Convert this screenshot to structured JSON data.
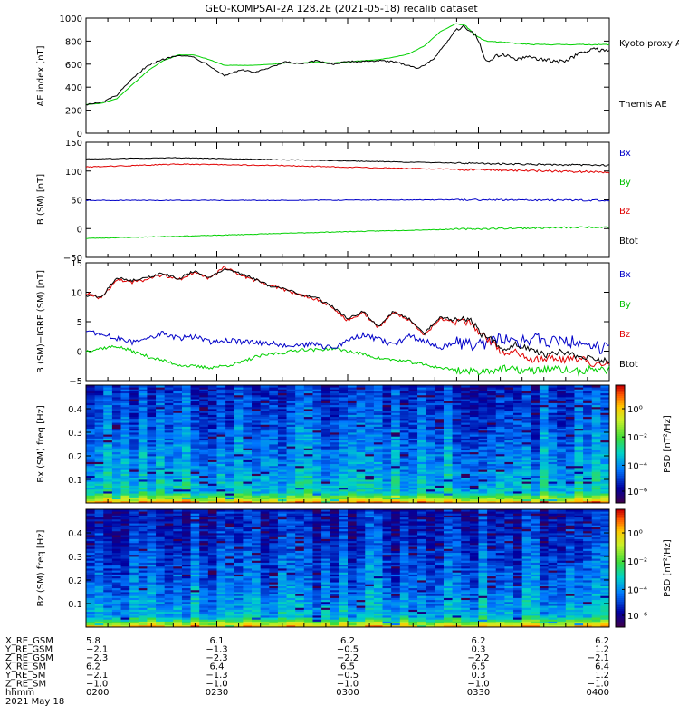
{
  "title": "GEO-KOMPSAT-2A 128.2E (2021-05-18) recalib dataset",
  "colors": {
    "black": "#000000",
    "red": "#e00000",
    "blue": "#0000c8",
    "green": "#00d000"
  },
  "chart_data": [
    {
      "type": "line",
      "panel": "ae",
      "ylabel": "AE index [nT]",
      "ylim": [
        0,
        1000
      ],
      "yticks": [
        "0",
        "200",
        "400",
        "600",
        "800",
        "1000"
      ],
      "xlim": [
        "02:00",
        "04:00"
      ],
      "legend": [
        "Kyoto proxy AE",
        "Themis AE"
      ],
      "series": [
        {
          "name": "Themis AE",
          "color": "#000000",
          "points": [
            [
              0,
              250
            ],
            [
              5,
              265
            ],
            [
              10,
              330
            ],
            [
              15,
              470
            ],
            [
              20,
              590
            ],
            [
              25,
              640
            ],
            [
              30,
              680
            ],
            [
              35,
              660
            ],
            [
              40,
              590
            ],
            [
              45,
              500
            ],
            [
              50,
              550
            ],
            [
              55,
              530
            ],
            [
              60,
              570
            ],
            [
              65,
              620
            ],
            [
              70,
              600
            ],
            [
              75,
              630
            ],
            [
              80,
              600
            ],
            [
              85,
              620
            ],
            [
              90,
              625
            ],
            [
              95,
              630
            ],
            [
              100,
              620
            ],
            [
              105,
              590
            ],
            [
              108,
              560
            ],
            [
              113,
              650
            ],
            [
              117,
              780
            ],
            [
              120,
              900
            ],
            [
              123,
              930
            ],
            [
              127,
              840
            ],
            [
              130,
              620
            ],
            [
              135,
              690
            ],
            [
              140,
              640
            ],
            [
              145,
              660
            ],
            [
              150,
              630
            ],
            [
              155,
              620
            ],
            [
              160,
              690
            ],
            [
              165,
              730
            ],
            [
              170,
              720
            ]
          ]
        },
        {
          "name": "Kyoto proxy AE",
          "color": "#00d000",
          "points": [
            [
              0,
              250
            ],
            [
              5,
              260
            ],
            [
              10,
              300
            ],
            [
              15,
              420
            ],
            [
              20,
              540
            ],
            [
              25,
              630
            ],
            [
              30,
              680
            ],
            [
              35,
              680
            ],
            [
              40,
              640
            ],
            [
              45,
              590
            ],
            [
              50,
              590
            ],
            [
              55,
              590
            ],
            [
              60,
              600
            ],
            [
              65,
              610
            ],
            [
              70,
              610
            ],
            [
              75,
              620
            ],
            [
              80,
              610
            ],
            [
              85,
              620
            ],
            [
              90,
              630
            ],
            [
              95,
              640
            ],
            [
              100,
              660
            ],
            [
              105,
              690
            ],
            [
              110,
              760
            ],
            [
              115,
              880
            ],
            [
              120,
              950
            ],
            [
              123,
              940
            ],
            [
              127,
              840
            ],
            [
              130,
              800
            ],
            [
              135,
              790
            ],
            [
              145,
              770
            ],
            [
              155,
              770
            ],
            [
              170,
              770
            ]
          ]
        }
      ]
    },
    {
      "type": "line",
      "panel": "b_sm",
      "ylabel": "B (SM) [nT]",
      "ylim": [
        -50,
        150
      ],
      "yticks": [
        "−50",
        "0",
        "50",
        "100",
        "150"
      ],
      "legend": [
        "Bx",
        "By",
        "Bz",
        "Btot"
      ],
      "series": [
        {
          "name": "Btot",
          "color": "#000000",
          "points": [
            [
              0,
              121
            ],
            [
              30,
              123
            ],
            [
              60,
              120
            ],
            [
              90,
              117
            ],
            [
              120,
              114
            ],
            [
              150,
              111
            ],
            [
              170,
              110
            ]
          ]
        },
        {
          "name": "Bz",
          "color": "#e00000",
          "points": [
            [
              0,
              107
            ],
            [
              30,
              112
            ],
            [
              60,
              110
            ],
            [
              90,
              106
            ],
            [
              120,
              103
            ],
            [
              150,
              100
            ],
            [
              170,
              98
            ]
          ]
        },
        {
          "name": "Bx",
          "color": "#0000c8",
          "points": [
            [
              0,
              49
            ],
            [
              60,
              49
            ],
            [
              120,
              50
            ],
            [
              170,
              49
            ]
          ]
        },
        {
          "name": "By",
          "color": "#00d000",
          "points": [
            [
              0,
              -17
            ],
            [
              40,
              -12
            ],
            [
              80,
              -6
            ],
            [
              120,
              -1
            ],
            [
              170,
              3
            ]
          ]
        }
      ]
    },
    {
      "type": "line",
      "panel": "b_sm_minus_igrf",
      "ylabel": "B (SM)−IGRF (SM) [nT]",
      "ylim": [
        -5,
        15
      ],
      "yticks": [
        "−5",
        "0",
        "5",
        "10",
        "15"
      ],
      "legend": [
        "Bx",
        "By",
        "Bz",
        "Btot"
      ],
      "series": [
        {
          "name": "Btot",
          "color": "#000000",
          "points": [
            [
              0,
              9.5
            ],
            [
              5,
              9.2
            ],
            [
              10,
              12.5
            ],
            [
              15,
              12.0
            ],
            [
              20,
              12.5
            ],
            [
              25,
              13.2
            ],
            [
              30,
              12.3
            ],
            [
              35,
              13.6
            ],
            [
              40,
              12.4
            ],
            [
              45,
              14.0
            ],
            [
              50,
              13.3
            ],
            [
              55,
              12.2
            ],
            [
              60,
              11.0
            ],
            [
              65,
              10.5
            ],
            [
              70,
              9.6
            ],
            [
              75,
              9.0
            ],
            [
              80,
              7.6
            ],
            [
              85,
              5.5
            ],
            [
              90,
              6.7
            ],
            [
              95,
              4.1
            ],
            [
              100,
              6.8
            ],
            [
              105,
              5.5
            ],
            [
              110,
              3.0
            ],
            [
              115,
              5.8
            ],
            [
              120,
              5.2
            ],
            [
              125,
              5.4
            ],
            [
              128,
              3.0
            ],
            [
              132,
              2.0
            ],
            [
              136,
              0.2
            ],
            [
              140,
              1.2
            ],
            [
              145,
              0.0
            ],
            [
              150,
              -0.8
            ],
            [
              155,
              0.0
            ],
            [
              160,
              -1.0
            ],
            [
              165,
              -1.3
            ],
            [
              170,
              -1.8
            ]
          ]
        },
        {
          "name": "Bz",
          "color": "#e00000",
          "points": [
            [
              0,
              9.8
            ],
            [
              5,
              9.0
            ],
            [
              10,
              12.2
            ],
            [
              15,
              11.7
            ],
            [
              20,
              12.2
            ],
            [
              25,
              13.0
            ],
            [
              30,
              12.1
            ],
            [
              35,
              13.3
            ],
            [
              40,
              12.3
            ],
            [
              45,
              14.3
            ],
            [
              50,
              13.0
            ],
            [
              55,
              12.0
            ],
            [
              60,
              11.2
            ],
            [
              65,
              10.3
            ],
            [
              70,
              9.4
            ],
            [
              75,
              8.8
            ],
            [
              80,
              7.5
            ],
            [
              85,
              5.2
            ],
            [
              90,
              6.6
            ],
            [
              95,
              4.0
            ],
            [
              100,
              6.6
            ],
            [
              105,
              5.2
            ],
            [
              110,
              2.8
            ],
            [
              115,
              5.5
            ],
            [
              120,
              4.9
            ],
            [
              125,
              5.0
            ],
            [
              128,
              2.8
            ],
            [
              132,
              1.6
            ],
            [
              136,
              -0.6
            ],
            [
              140,
              0.0
            ],
            [
              145,
              -1.5
            ],
            [
              150,
              -1.2
            ],
            [
              155,
              -1.5
            ],
            [
              160,
              -1.3
            ],
            [
              165,
              -2.0
            ],
            [
              170,
              -2.4
            ]
          ]
        },
        {
          "name": "Bx",
          "color": "#0000c8",
          "points": [
            [
              0,
              3.5
            ],
            [
              5,
              2.8
            ],
            [
              10,
              2.1
            ],
            [
              15,
              1.5
            ],
            [
              20,
              2.4
            ],
            [
              25,
              3.0
            ],
            [
              30,
              2.1
            ],
            [
              35,
              2.5
            ],
            [
              40,
              1.5
            ],
            [
              45,
              1.9
            ],
            [
              50,
              1.6
            ],
            [
              55,
              1.4
            ],
            [
              60,
              1.3
            ],
            [
              65,
              1.1
            ],
            [
              70,
              0.9
            ],
            [
              75,
              1.2
            ],
            [
              80,
              0.4
            ],
            [
              85,
              1.8
            ],
            [
              90,
              2.7
            ],
            [
              95,
              2.0
            ],
            [
              100,
              1.0
            ],
            [
              105,
              2.5
            ],
            [
              110,
              1.8
            ],
            [
              115,
              0.5
            ],
            [
              120,
              1.5
            ],
            [
              125,
              1.0
            ],
            [
              130,
              1.3
            ],
            [
              135,
              2.0
            ],
            [
              140,
              1.5
            ],
            [
              145,
              2.1
            ],
            [
              150,
              1.6
            ],
            [
              155,
              1.9
            ],
            [
              160,
              1.4
            ],
            [
              165,
              0.8
            ],
            [
              170,
              0.4
            ]
          ]
        },
        {
          "name": "By",
          "color": "#00d000",
          "points": [
            [
              0,
              0.0
            ],
            [
              5,
              0.5
            ],
            [
              10,
              0.8
            ],
            [
              15,
              0.0
            ],
            [
              20,
              -0.9
            ],
            [
              25,
              -1.6
            ],
            [
              30,
              -2.3
            ],
            [
              35,
              -2.6
            ],
            [
              40,
              -2.8
            ],
            [
              45,
              -2.5
            ],
            [
              50,
              -2.0
            ],
            [
              55,
              -1.0
            ],
            [
              60,
              -0.5
            ],
            [
              65,
              -0.2
            ],
            [
              70,
              0.3
            ],
            [
              75,
              0.2
            ],
            [
              80,
              0.5
            ],
            [
              85,
              0.0
            ],
            [
              90,
              -0.5
            ],
            [
              95,
              -1.2
            ],
            [
              100,
              -1.5
            ],
            [
              105,
              -1.8
            ],
            [
              110,
              -2.3
            ],
            [
              115,
              -2.8
            ],
            [
              120,
              -3.2
            ],
            [
              125,
              -3.5
            ],
            [
              130,
              -3.3
            ],
            [
              135,
              -3.0
            ],
            [
              140,
              -3.2
            ],
            [
              145,
              -3.4
            ],
            [
              150,
              -3.0
            ],
            [
              155,
              -3.2
            ],
            [
              160,
              -3.5
            ],
            [
              165,
              -3.0
            ],
            [
              170,
              -3.2
            ]
          ]
        }
      ]
    },
    {
      "type": "heatmap",
      "panel": "bx_spectrogram",
      "ylabel": "Bx (SM) freq [Hz]",
      "yticks": [
        "0.1",
        "0.2",
        "0.3",
        "0.4"
      ],
      "ylim": [
        0,
        0.5
      ],
      "colorbar_label": "PSD [nT²/Hz]",
      "colorbar_ticks": [
        "10⁰",
        "10⁻²",
        "10⁻⁴",
        "10⁻⁶"
      ]
    },
    {
      "type": "heatmap",
      "panel": "bz_spectrogram",
      "ylabel": "Bz (SM) freq [Hz]",
      "yticks": [
        "0.1",
        "0.2",
        "0.3",
        "0.4"
      ],
      "ylim": [
        0,
        0.5
      ],
      "colorbar_label": "PSD [nT²/Hz]",
      "colorbar_ticks": [
        "10⁰",
        "10⁻²",
        "10⁻⁴",
        "10⁻⁶"
      ]
    }
  ],
  "orbit": {
    "labels": [
      "X_RE_GSM",
      "Y_RE_GSM",
      "Z_RE_GSM",
      "X_RE_SM",
      "Y_RE_SM",
      "Z_RE_SM",
      "hhmm"
    ],
    "columns": [
      [
        "5.8",
        "−2.1",
        "−2.3",
        "6.2",
        "−2.1",
        "−1.0",
        "0200"
      ],
      [
        "6.1",
        "−1.3",
        "−2.3",
        "6.4",
        "−1.3",
        "−1.0",
        "0230"
      ],
      [
        "6.2",
        "−0.5",
        "−2.2",
        "6.5",
        "−0.5",
        "−1.0",
        "0300"
      ],
      [
        "6.2",
        "0.3",
        "−2.2",
        "6.5",
        "0.3",
        "−1.0",
        "0330"
      ],
      [
        "6.2",
        "1.2",
        "−2.1",
        "6.4",
        "1.2",
        "−1.0",
        "0400"
      ]
    ],
    "date": "2021 May 18"
  }
}
